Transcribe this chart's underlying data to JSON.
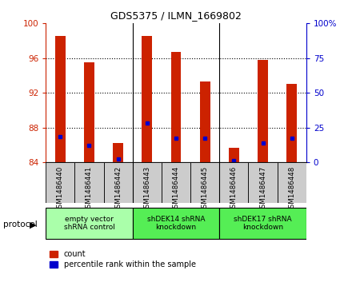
{
  "title": "GDS5375 / ILMN_1669802",
  "samples": [
    "GSM1486440",
    "GSM1486441",
    "GSM1486442",
    "GSM1486443",
    "GSM1486444",
    "GSM1486445",
    "GSM1486446",
    "GSM1486447",
    "GSM1486448"
  ],
  "count_values": [
    98.5,
    95.5,
    86.2,
    98.5,
    96.7,
    93.3,
    85.7,
    95.8,
    93.0
  ],
  "percentile_values": [
    87.0,
    86.0,
    84.4,
    88.5,
    86.8,
    86.8,
    84.2,
    86.2,
    86.8
  ],
  "bar_color": "#cc2200",
  "percentile_color": "#0000cc",
  "ylim_left": [
    84,
    100
  ],
  "ylim_right": [
    0,
    100
  ],
  "yticks_left": [
    84,
    88,
    92,
    96,
    100
  ],
  "yticks_right": [
    0,
    25,
    50,
    75,
    100
  ],
  "ytick_labels_right": [
    "0",
    "25",
    "50",
    "75",
    "100%"
  ],
  "protocols": [
    {
      "label": "empty vector\nshRNA control",
      "start": 0,
      "end": 3,
      "color": "#aaffaa"
    },
    {
      "label": "shDEK14 shRNA\nknockdown",
      "start": 3,
      "end": 6,
      "color": "#55ee55"
    },
    {
      "label": "shDEK17 shRNA\nknockdown",
      "start": 6,
      "end": 9,
      "color": "#55ee55"
    }
  ],
  "protocol_label": "protocol",
  "legend_count_label": "count",
  "legend_percentile_label": "percentile rank within the sample",
  "bar_width": 0.35,
  "background_color": "#ffffff",
  "axes_color_left": "#cc2200",
  "axes_color_right": "#0000cc",
  "grid_ticks": [
    88,
    92,
    96
  ],
  "sample_bg_color": "#cccccc",
  "group_dividers": [
    2.5,
    5.5
  ]
}
